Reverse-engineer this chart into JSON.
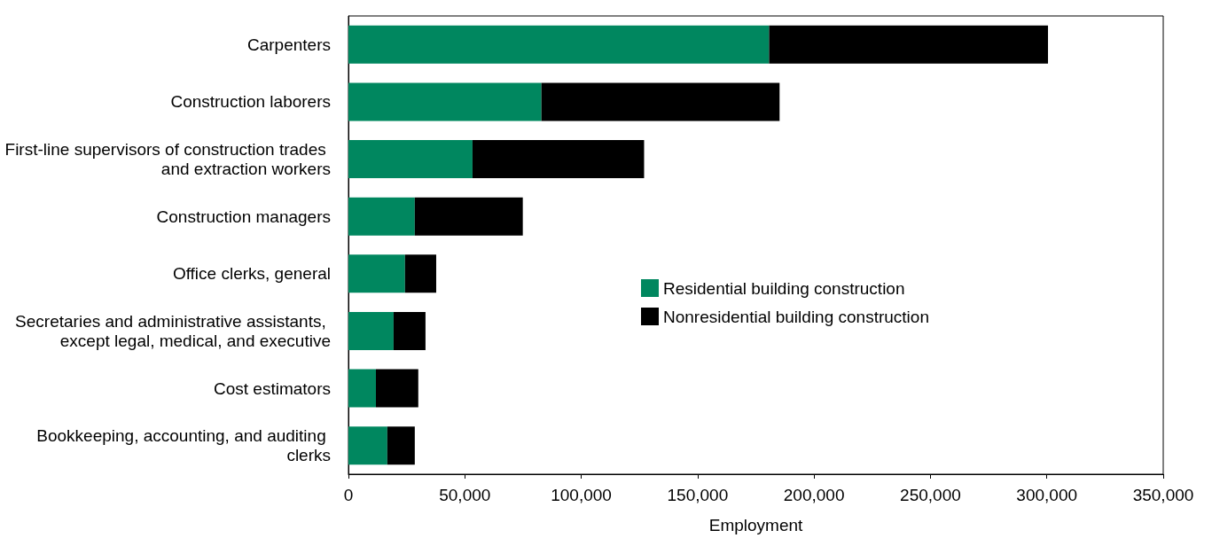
{
  "chart_data": {
    "type": "bar",
    "orientation": "horizontal",
    "stacked": true,
    "xlabel": "Employment",
    "categories": [
      "Carpenters",
      "Construction laborers",
      "First-line supervisors of construction trades and extraction workers",
      "Construction managers",
      "Office clerks, general",
      "Secretaries and administrative assistants, except legal, medical, and executive",
      "Cost estimators",
      "Bookkeeping, accounting, and auditing clerks"
    ],
    "series": [
      {
        "name": "Residential building construction",
        "color": "#00875f",
        "values": [
          180700,
          82900,
          53300,
          28500,
          24300,
          19400,
          11800,
          16700
        ]
      },
      {
        "name": "Nonresidential building construction",
        "color": "#000000",
        "values": [
          119800,
          102300,
          73700,
          46400,
          13400,
          13700,
          18200,
          11800
        ]
      }
    ],
    "xlim": [
      0,
      350000
    ],
    "xticks": [
      {
        "value": 0,
        "label": "0"
      },
      {
        "value": 50000,
        "label": "50,000"
      },
      {
        "value": 100000,
        "label": "100,000"
      },
      {
        "value": 150000,
        "label": "150,000"
      },
      {
        "value": 200000,
        "label": "200,000"
      },
      {
        "value": 250000,
        "label": "250,000"
      },
      {
        "value": 300000,
        "label": "300,000"
      },
      {
        "value": 350000,
        "label": "350,000"
      }
    ],
    "grid": false,
    "legend": "right"
  }
}
